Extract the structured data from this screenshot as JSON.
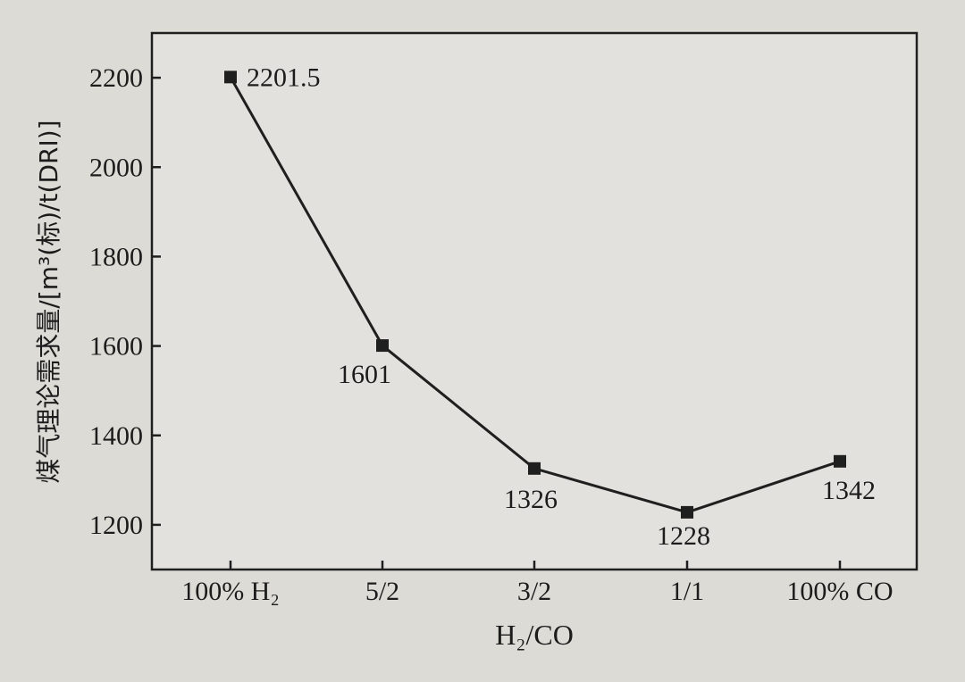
{
  "chart_data": {
    "type": "line",
    "categories": [
      "100% H₂",
      "5/2",
      "3/2",
      "1/1",
      "100% CO"
    ],
    "series": [
      {
        "values": [
          2201.5,
          1601,
          1326,
          1228,
          1342
        ],
        "labels": [
          "2201.5",
          "1601",
          "1326",
          "1228",
          "1342"
        ]
      }
    ],
    "xlabel": "H₂/CO",
    "ylabel": "煤气理论需求量/[m³(标)/t(DRI)]",
    "ylim": [
      1100,
      2300
    ],
    "yticks": [
      1200,
      1400,
      1600,
      1800,
      2000,
      2200
    ],
    "grid": false,
    "legend": "none",
    "colors": {
      "line": "#1f1f1f",
      "background": "#dcdbd6",
      "plot_background": "#e2e1dd"
    }
  }
}
